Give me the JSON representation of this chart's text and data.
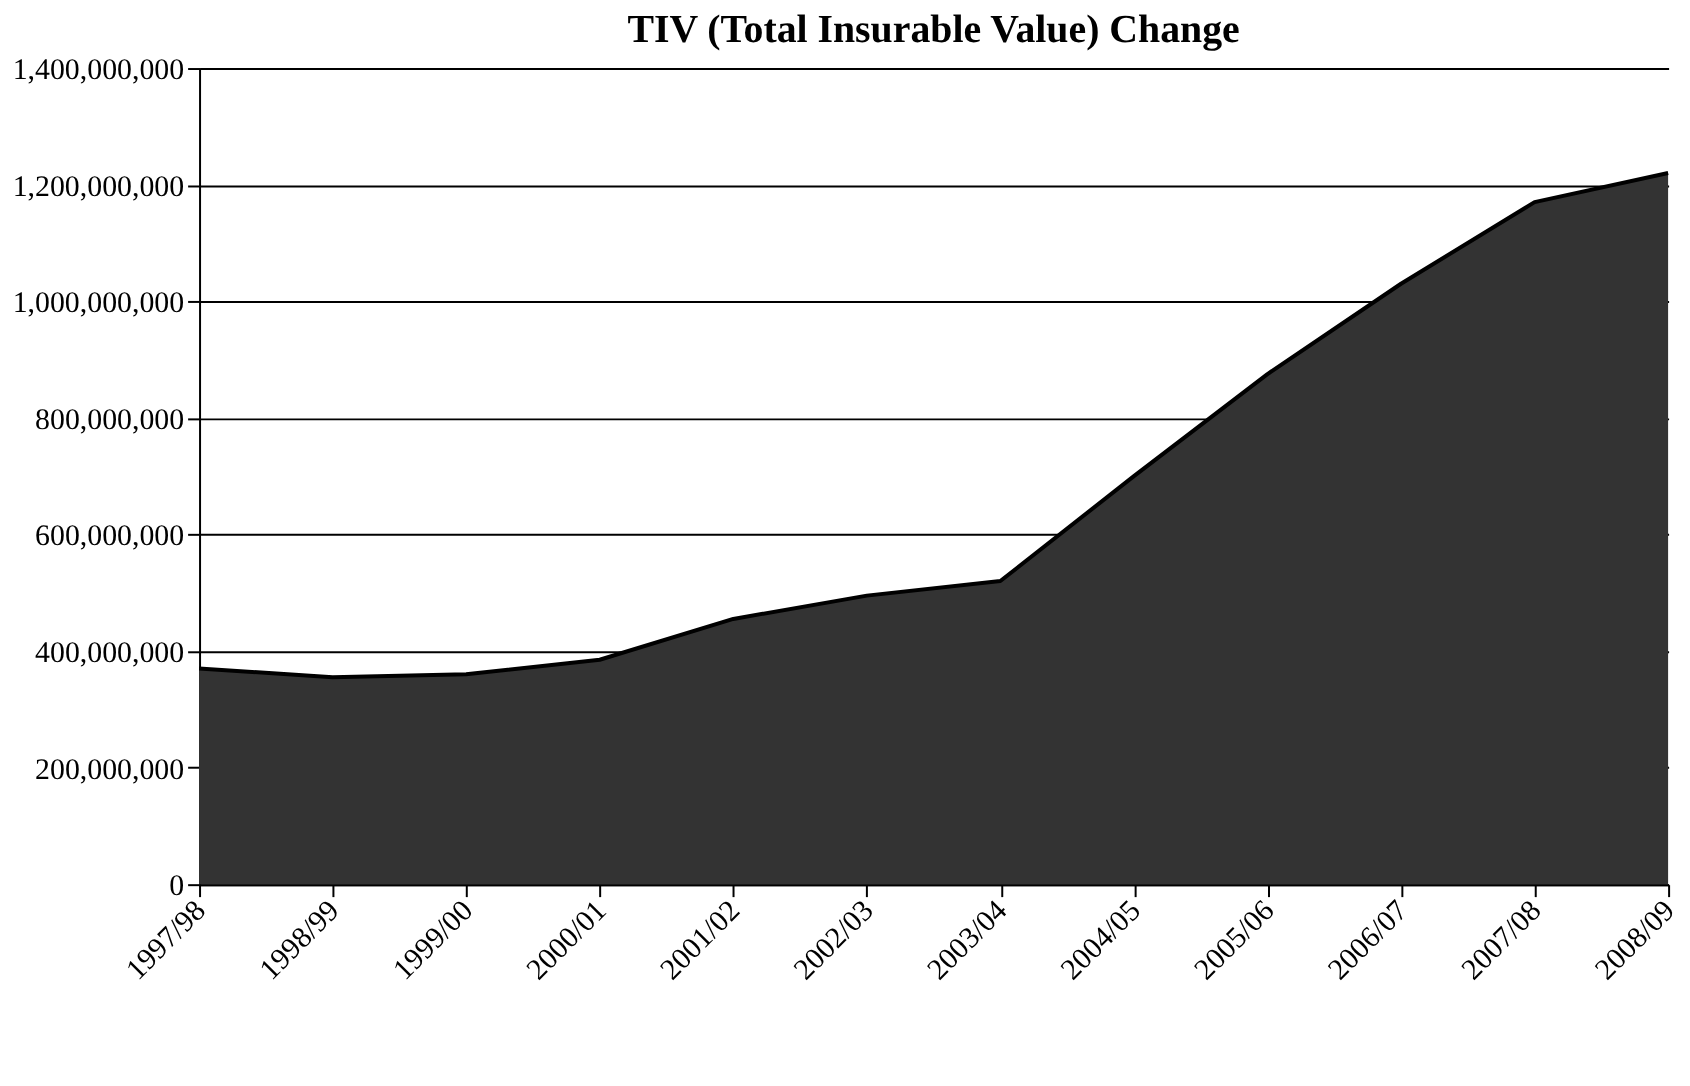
{
  "chart_data": {
    "type": "area",
    "title": "TIV (Total Insurable Value) Change",
    "categories": [
      "1997/98",
      "1998/99",
      "1999/00",
      "2000/01",
      "2001/02",
      "2002/03",
      "2003/04",
      "2004/05",
      "2005/06",
      "2006/07",
      "2007/08",
      "2008/09"
    ],
    "series": [
      {
        "color": "#333333",
        "values": [
          370000000,
          355000000,
          360000000,
          385000000,
          455000000,
          495000000,
          520000000,
          700000000,
          875000000,
          1030000000,
          1170000000,
          1220000000
        ]
      }
    ],
    "ylim": [
      0,
      1400000000
    ],
    "yticks": [
      0,
      {
        "value": 200000000,
        "label": "200,000,000"
      },
      {
        "value": 400000000,
        "label": "400,000,000"
      },
      {
        "value": 600000000,
        "label": "600,000,000"
      },
      {
        "value": 800000000,
        "label": "800,000,000"
      },
      {
        "value": 1000000000,
        "label": "1,000,000,000"
      },
      {
        "value": 1200000000,
        "label": "1,200,000,000"
      },
      {
        "value": 1400000000,
        "label": "1,400,000,000"
      }
    ],
    "grid": "y"
  }
}
